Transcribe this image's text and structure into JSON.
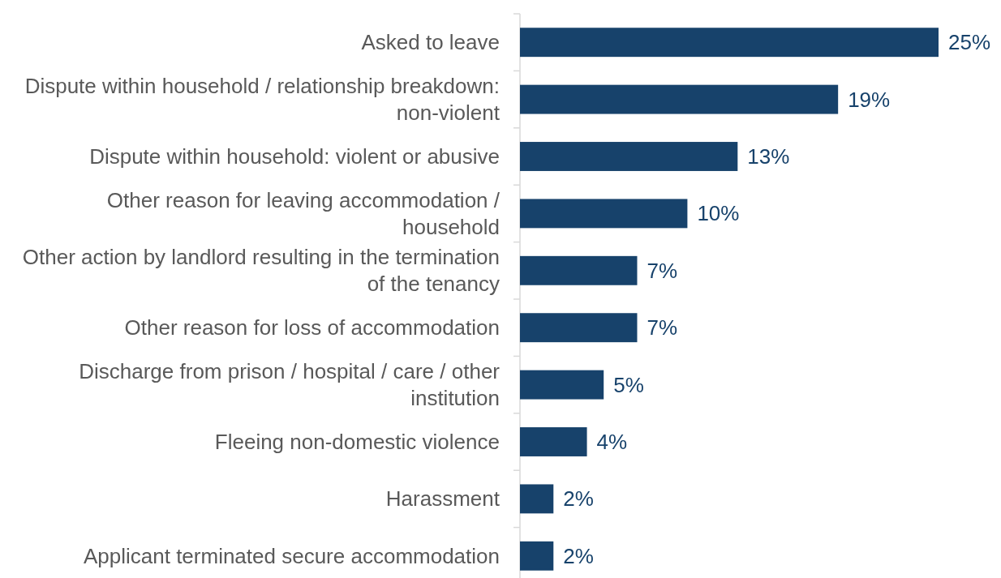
{
  "chart_data": {
    "type": "bar",
    "orientation": "horizontal",
    "categories": [
      "Asked to leave",
      "Dispute within household / relationship breakdown: non-violent",
      "Dispute within household: violent or abusive",
      "Other reason for leaving accommodation / household",
      "Other action by landlord resulting in the termination of the tenancy",
      "Other reason for loss of accommodation",
      "Discharge from prison / hospital / care / other institution",
      "Fleeing non-domestic violence",
      "Harassment",
      "Applicant terminated secure accommodation"
    ],
    "values": [
      25,
      19,
      13,
      10,
      7,
      7,
      5,
      4,
      2,
      2
    ],
    "value_labels": [
      "25%",
      "19%",
      "13%",
      "10%",
      "7%",
      "7%",
      "5%",
      "4%",
      "2%",
      "2%"
    ],
    "color": "#17426b"
  }
}
